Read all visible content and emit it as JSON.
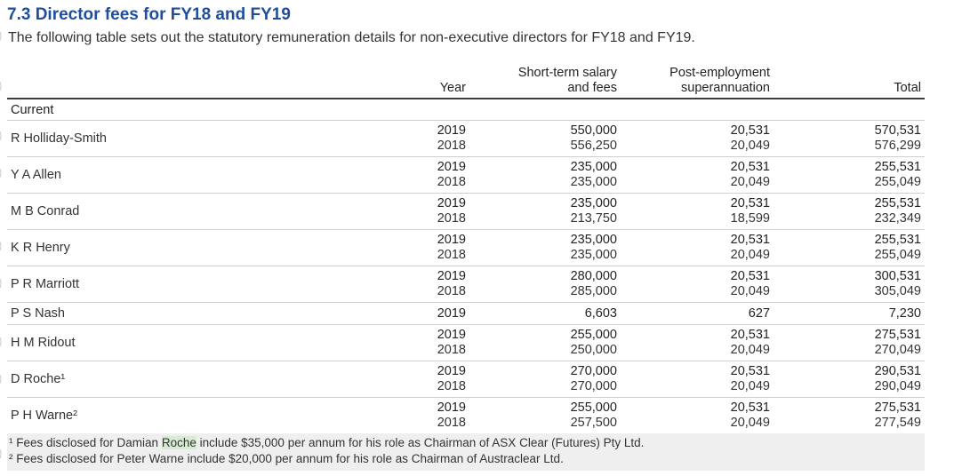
{
  "section": {
    "title": "7.3 Director fees for FY18 and FY19",
    "intro": "The following table sets out the statutory remuneration details for non-executive directors for FY18 and FY19."
  },
  "table": {
    "headers": {
      "name": "",
      "year": "Year",
      "salary_line1": "Short-term salary",
      "salary_line2": "and fees",
      "super_line1": "Post-employment",
      "super_line2": "superannuation",
      "total": "Total"
    },
    "group_label": "Current",
    "rows": [
      {
        "name": "R Holliday-Smith",
        "years": [
          "2019",
          "2018"
        ],
        "salary": [
          "550,000",
          "556,250"
        ],
        "super": [
          "20,531",
          "20,049"
        ],
        "total": [
          "570,531",
          "576,299"
        ]
      },
      {
        "name": "Y A Allen",
        "years": [
          "2019",
          "2018"
        ],
        "salary": [
          "235,000",
          "235,000"
        ],
        "super": [
          "20,531",
          "20,049"
        ],
        "total": [
          "255,531",
          "255,049"
        ]
      },
      {
        "name": "M B Conrad",
        "years": [
          "2019",
          "2018"
        ],
        "salary": [
          "235,000",
          "213,750"
        ],
        "super": [
          "20,531",
          "18,599"
        ],
        "total": [
          "255,531",
          "232,349"
        ]
      },
      {
        "name": "K R Henry",
        "years": [
          "2019",
          "2018"
        ],
        "salary": [
          "235,000",
          "235,000"
        ],
        "super": [
          "20,531",
          "20,049"
        ],
        "total": [
          "255,531",
          "255,049"
        ]
      },
      {
        "name": "P R Marriott",
        "years": [
          "2019",
          "2018"
        ],
        "salary": [
          "280,000",
          "285,000"
        ],
        "super": [
          "20,531",
          "20,049"
        ],
        "total": [
          "300,531",
          "305,049"
        ]
      },
      {
        "name": "P S Nash",
        "years": [
          "2019"
        ],
        "salary": [
          "6,603"
        ],
        "super": [
          "627"
        ],
        "total": [
          "7,230"
        ]
      },
      {
        "name": "H M Ridout",
        "years": [
          "2019",
          "2018"
        ],
        "salary": [
          "255,000",
          "250,000"
        ],
        "super": [
          "20,531",
          "20,049"
        ],
        "total": [
          "275,531",
          "270,049"
        ]
      },
      {
        "name": "D Roche¹",
        "years": [
          "2019",
          "2018"
        ],
        "salary": [
          "270,000",
          "270,000"
        ],
        "super": [
          "20,531",
          "20,049"
        ],
        "total": [
          "290,531",
          "290,049"
        ]
      },
      {
        "name": "P H Warne²",
        "years": [
          "2019",
          "2018"
        ],
        "salary": [
          "255,000",
          "257,500"
        ],
        "super": [
          "20,531",
          "20,049"
        ],
        "total": [
          "275,531",
          "277,549"
        ]
      }
    ]
  },
  "footnotes": {
    "note1_prefix": "¹ Fees disclosed for Damian ",
    "note1_highlight": "Roche",
    "note1_suffix": " include $35,000 per annum for his role as Chairman of ASX Clear (Futures) Pty Ltd.",
    "note2": "² Fees disclosed for Peter Warne include $20,000 per annum for his role as Chairman of Austraclear Ltd.",
    "highlight_color": "#d7ebd2"
  },
  "colors": {
    "title": "#1f4e9c",
    "rule": "#3d3d3d",
    "row_divider": "#cfcfcf",
    "notes_background": "#efefef"
  }
}
